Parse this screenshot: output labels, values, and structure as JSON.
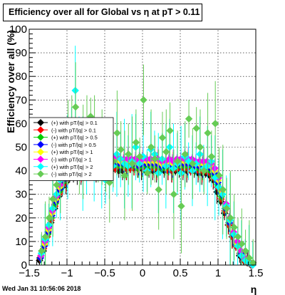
{
  "page": {
    "timestamp": "Wed Jan 31 10:56:06 2018"
  },
  "chart_data": {
    "type": "scatter",
    "title": "Efficiency over all for Global vs   η at pT > 0.11",
    "xlabel": "η",
    "ylabel": "Efficiency over all (%)",
    "xlim": [
      -1.5,
      1.5
    ],
    "ylim": [
      0,
      100
    ],
    "grid": true,
    "x_ticks": [
      "−1.5",
      "−1",
      "−0.5",
      "0",
      "0.5",
      "1",
      "1.5"
    ],
    "y_ticks": [
      "0",
      "10",
      "20",
      "30",
      "40",
      "50",
      "60",
      "70",
      "80",
      "90",
      "100"
    ],
    "legend_position": "middle-left",
    "x": [
      -1.35,
      -1.3,
      -1.25,
      -1.2,
      -1.15,
      -1.1,
      -1.05,
      -1.0,
      -0.95,
      -0.9,
      -0.85,
      -0.8,
      -0.75,
      -0.7,
      -0.65,
      -0.6,
      -0.55,
      -0.5,
      -0.45,
      -0.4,
      -0.35,
      -0.3,
      -0.25,
      -0.2,
      -0.15,
      -0.1,
      -0.05,
      0.0,
      0.05,
      0.1,
      0.15,
      0.2,
      0.25,
      0.3,
      0.35,
      0.4,
      0.45,
      0.5,
      0.55,
      0.6,
      0.65,
      0.7,
      0.75,
      0.8,
      0.85,
      0.9,
      0.95,
      1.0,
      1.05,
      1.1,
      1.15,
      1.2,
      1.25,
      1.3,
      1.35,
      1.4,
      1.45
    ],
    "series": [
      {
        "name": "(+) with pT/|q| > 0.1",
        "color": "#000000",
        "values": [
          2,
          6,
          12,
          18,
          24,
          29,
          33,
          35,
          37,
          38,
          38,
          39,
          39,
          39,
          40,
          40,
          40,
          40,
          40,
          40,
          41,
          40,
          40,
          41,
          41,
          41,
          41,
          41,
          40,
          40,
          40,
          40,
          40,
          40,
          40,
          40,
          40,
          40,
          40,
          40,
          40,
          40,
          39,
          39,
          39,
          38,
          36,
          31,
          27,
          22,
          17,
          12,
          8,
          4,
          2,
          1,
          0
        ]
      },
      {
        "name": "(-) with pT/|q| > 0.1",
        "color": "#ff0000",
        "values": [
          3,
          7,
          12,
          19,
          25,
          30,
          34,
          36,
          38,
          39,
          40,
          40,
          40,
          40,
          41,
          41,
          41,
          41,
          41,
          41,
          41,
          42,
          42,
          41,
          41,
          41,
          41,
          42,
          41,
          41,
          41,
          41,
          41,
          41,
          40,
          40,
          41,
          41,
          41,
          41,
          40,
          41,
          40,
          40,
          40,
          39,
          37,
          33,
          28,
          23,
          17,
          12,
          8,
          5,
          2,
          1,
          0
        ]
      },
      {
        "name": "(+) with pT/|q| > 0.5",
        "color": "#00cc00",
        "values": [
          3,
          8,
          13,
          20,
          26,
          31,
          35,
          37,
          39,
          40,
          41,
          41,
          41,
          42,
          42,
          42,
          42,
          41,
          42,
          42,
          43,
          42,
          42,
          42,
          43,
          42,
          41,
          42,
          42,
          42,
          42,
          42,
          41,
          41,
          42,
          41,
          42,
          42,
          42,
          42,
          42,
          41,
          41,
          41,
          41,
          40,
          38,
          34,
          29,
          24,
          18,
          13,
          9,
          5,
          3,
          1,
          0
        ]
      },
      {
        "name": "(-) with pT/|q| > 0.5",
        "color": "#0000ff",
        "values": [
          3,
          8,
          14,
          21,
          27,
          32,
          36,
          38,
          40,
          41,
          42,
          42,
          43,
          43,
          43,
          43,
          43,
          43,
          43,
          43,
          44,
          43,
          43,
          43,
          43,
          43,
          42,
          43,
          43,
          43,
          43,
          43,
          42,
          42,
          43,
          42,
          43,
          43,
          43,
          43,
          43,
          42,
          42,
          42,
          42,
          41,
          39,
          35,
          30,
          24,
          18,
          13,
          9,
          5,
          3,
          1,
          0
        ]
      },
      {
        "name": "(+) with pT/|q| > 1",
        "color": "#ffff00",
        "values": [
          4,
          9,
          15,
          22,
          28,
          33,
          37,
          39,
          41,
          42,
          43,
          43,
          44,
          44,
          44,
          44,
          44,
          44,
          44,
          45,
          45,
          44,
          44,
          44,
          44,
          44,
          43,
          44,
          44,
          44,
          44,
          44,
          43,
          43,
          44,
          43,
          44,
          44,
          44,
          44,
          44,
          43,
          43,
          43,
          43,
          42,
          40,
          36,
          31,
          25,
          19,
          14,
          9,
          6,
          3,
          1,
          0
        ]
      },
      {
        "name": "(-) with pT/|q| > 1",
        "color": "#ff00ff",
        "values": [
          4,
          10,
          16,
          23,
          29,
          34,
          38,
          40,
          42,
          43,
          44,
          44,
          45,
          45,
          45,
          45,
          45,
          45,
          45,
          46,
          46,
          45,
          45,
          45,
          45,
          45,
          44,
          45,
          45,
          45,
          45,
          45,
          44,
          44,
          45,
          44,
          45,
          45,
          45,
          45,
          45,
          44,
          44,
          44,
          44,
          43,
          41,
          37,
          32,
          26,
          20,
          14,
          10,
          6,
          3,
          1,
          0
        ]
      },
      {
        "name": "(+) with pT/|q| > 2",
        "color": "#00ffff",
        "values": [
          5,
          11,
          17,
          24,
          30,
          36,
          41,
          46,
          55,
          74,
          50,
          43,
          44,
          46,
          42,
          48,
          40,
          36,
          45,
          42,
          47,
          45,
          43,
          42,
          44,
          50,
          43,
          46,
          40,
          49,
          47,
          39,
          45,
          42,
          50,
          41,
          43,
          39,
          46,
          44,
          40,
          43,
          47,
          41,
          42,
          44,
          37,
          33,
          30,
          25,
          19,
          13,
          8,
          4,
          2,
          1,
          0
        ]
      },
      {
        "name": "(-) with pT/|q| > 2",
        "color": "#66cc55",
        "values": [
          6,
          12,
          20,
          28,
          34,
          39,
          45,
          52,
          60,
          67,
          43,
          48,
          58,
          63,
          57,
          44,
          50,
          41,
          35,
          44,
          56,
          49,
          38,
          47,
          43,
          52,
          46,
          70,
          39,
          50,
          45,
          32,
          54,
          48,
          57,
          30,
          44,
          25,
          47,
          62,
          43,
          58,
          50,
          40,
          56,
          46,
          60,
          38,
          32,
          24,
          20,
          16,
          12,
          9,
          6,
          3,
          1
        ]
      }
    ]
  }
}
